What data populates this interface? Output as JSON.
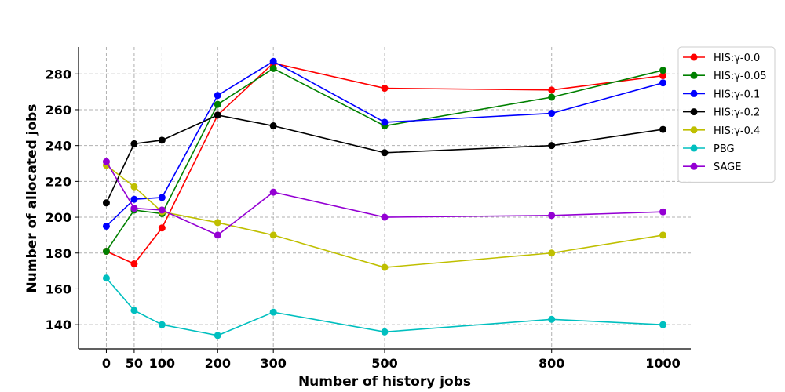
{
  "chart_data": {
    "type": "line",
    "title": "",
    "xlabel": "Number of history jobs",
    "ylabel": "Number of allocated jobs",
    "x": [
      0,
      50,
      100,
      200,
      300,
      500,
      800,
      1000
    ],
    "x_ticks": [
      "0",
      "50",
      "100",
      "200",
      "300",
      "500",
      "800",
      "1000"
    ],
    "y_ticks": [
      "140",
      "160",
      "180",
      "200",
      "220",
      "240",
      "260",
      "280"
    ],
    "xlim": [
      -50,
      1050
    ],
    "ylim": [
      126.5,
      295
    ],
    "grid": true,
    "legend_position": "top-right",
    "series": [
      {
        "name": "HIS:γ-0.0",
        "color": "#ff0000",
        "values": [
          181,
          174,
          194,
          257,
          286,
          272,
          271,
          279
        ]
      },
      {
        "name": "HIS:γ-0.05",
        "color": "#008000",
        "values": [
          181,
          204,
          202,
          263,
          283,
          251,
          267,
          282
        ]
      },
      {
        "name": "HIS:γ-0.1",
        "color": "#0000ff",
        "values": [
          195,
          210,
          211,
          268,
          287,
          253,
          258,
          275
        ]
      },
      {
        "name": "HIS:γ-0.2",
        "color": "#000000",
        "values": [
          208,
          241,
          243,
          257,
          251,
          236,
          240,
          249
        ]
      },
      {
        "name": "HIS:γ-0.4",
        "color": "#bfbf00",
        "values": [
          229,
          217,
          203,
          197,
          190,
          172,
          180,
          190
        ]
      },
      {
        "name": "PBG",
        "color": "#00bfbf",
        "values": [
          166,
          148,
          140,
          134,
          147,
          136,
          143,
          140
        ]
      },
      {
        "name": "SAGE",
        "color": "#9400d3",
        "values": [
          231,
          205,
          204,
          190,
          214,
          200,
          201,
          203
        ]
      }
    ]
  }
}
